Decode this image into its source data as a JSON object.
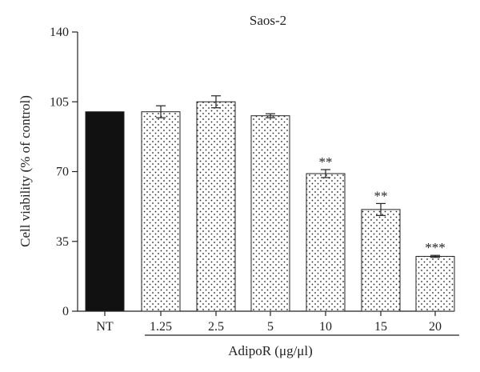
{
  "chart_data": {
    "type": "bar",
    "title": "Saos-2",
    "ylabel": "Cell viability (% of control)",
    "group_label": "AdipoR (μg/μl)",
    "ylim": [
      0,
      140
    ],
    "yticks": [
      0,
      35,
      70,
      105,
      140
    ],
    "categories": [
      "NT",
      "1.25",
      "2.5",
      "5",
      "10",
      "15",
      "20"
    ],
    "values": [
      100,
      100,
      105,
      98,
      69,
      51,
      27.5
    ],
    "errors": [
      0,
      3,
      3,
      1,
      2,
      3,
      0.5
    ],
    "significance": [
      "",
      "",
      "",
      "",
      "**",
      "**",
      "***"
    ],
    "bar_fills": [
      "solid",
      "dotted",
      "dotted",
      "dotted",
      "dotted",
      "dotted",
      "dotted"
    ],
    "grouped_categories": [
      "1.25",
      "2.5",
      "5",
      "10",
      "15",
      "20"
    ],
    "colors": {
      "solid": "#111111",
      "dot": "#222222",
      "axis": "#222222"
    }
  }
}
